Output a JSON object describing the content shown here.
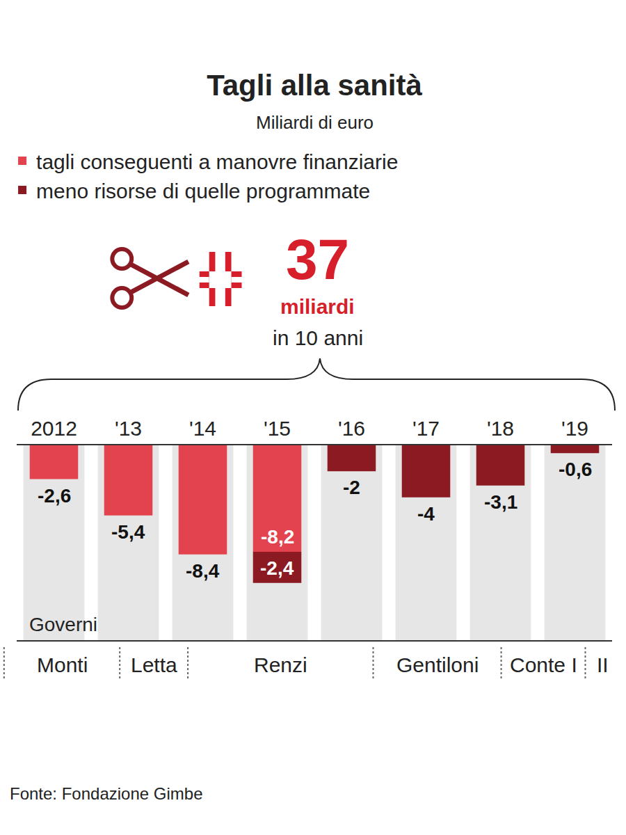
{
  "chart_data": {
    "type": "bar",
    "title": "Tagli alla sanità",
    "subtitle": "Miliardi di euro",
    "categories": [
      "2012",
      "'13",
      "'14",
      "'15",
      "'16",
      "'17",
      "'18",
      "'19"
    ],
    "series": [
      {
        "name": "tagli conseguenti a manovre finanziarie",
        "color": "#e2434f",
        "values": [
          -2.6,
          -5.4,
          -8.4,
          -8.2,
          null,
          null,
          null,
          null
        ],
        "value_labels": [
          "-2,6",
          "-5,4",
          "-8,4",
          "-8,2",
          null,
          null,
          null,
          null
        ]
      },
      {
        "name": "meno risorse di quelle programmate",
        "color": "#8c1a22",
        "values": [
          null,
          null,
          null,
          -2.4,
          -2,
          -4,
          -3.1,
          -0.6
        ],
        "value_labels": [
          null,
          null,
          null,
          "-2,4",
          "-2",
          "-4",
          "-3,1",
          "-0,6"
        ]
      }
    ],
    "stacked": true,
    "data_labels": true,
    "legend": "top left",
    "grid": false,
    "tick_labels": "x",
    "ylim": [
      -15,
      0
    ],
    "headline": {
      "value": 37,
      "unit": "miliardi",
      "period": "in 10 anni"
    },
    "governments_label": "Governi",
    "governments": [
      {
        "name": "Monti",
        "from": -0.67,
        "to": 0.885
      },
      {
        "name": "Letta",
        "from": 0.885,
        "to": 1.8
      },
      {
        "name": "Renzi",
        "from": 1.8,
        "to": 4.29
      },
      {
        "name": "Gentiloni",
        "from": 4.29,
        "to": 6.01
      },
      {
        "name": "Conte I",
        "from": 6.01,
        "to": 7.14
      },
      {
        "name": "II",
        "from": 7.14,
        "to": 7.6
      }
    ],
    "source": "Fonte: Fondazione Gimbe"
  }
}
